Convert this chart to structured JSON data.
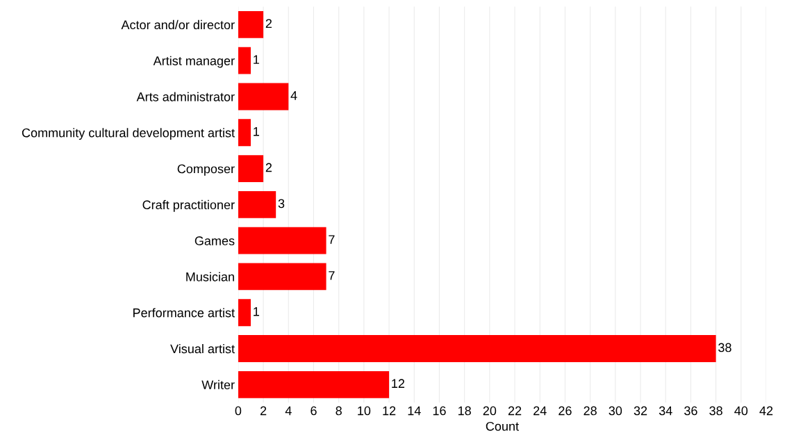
{
  "chart_data": {
    "type": "bar",
    "orientation": "horizontal",
    "xlabel": "Count",
    "categories": [
      "Actor and/or director",
      "Artist manager",
      "Arts administrator",
      "Community cultural development artist",
      "Composer",
      "Craft practitioner",
      "Games",
      "Musician",
      "Performance artist",
      "Visual artist",
      "Writer"
    ],
    "values": [
      2,
      1,
      4,
      1,
      2,
      3,
      7,
      7,
      1,
      38,
      12
    ],
    "color": "#ff0000",
    "xlim": [
      0,
      42
    ],
    "xticks": [
      0,
      2,
      4,
      6,
      8,
      10,
      12,
      14,
      16,
      18,
      20,
      22,
      24,
      26,
      28,
      30,
      32,
      34,
      36,
      38,
      40,
      42
    ],
    "grid": "x",
    "data_labels": true
  }
}
